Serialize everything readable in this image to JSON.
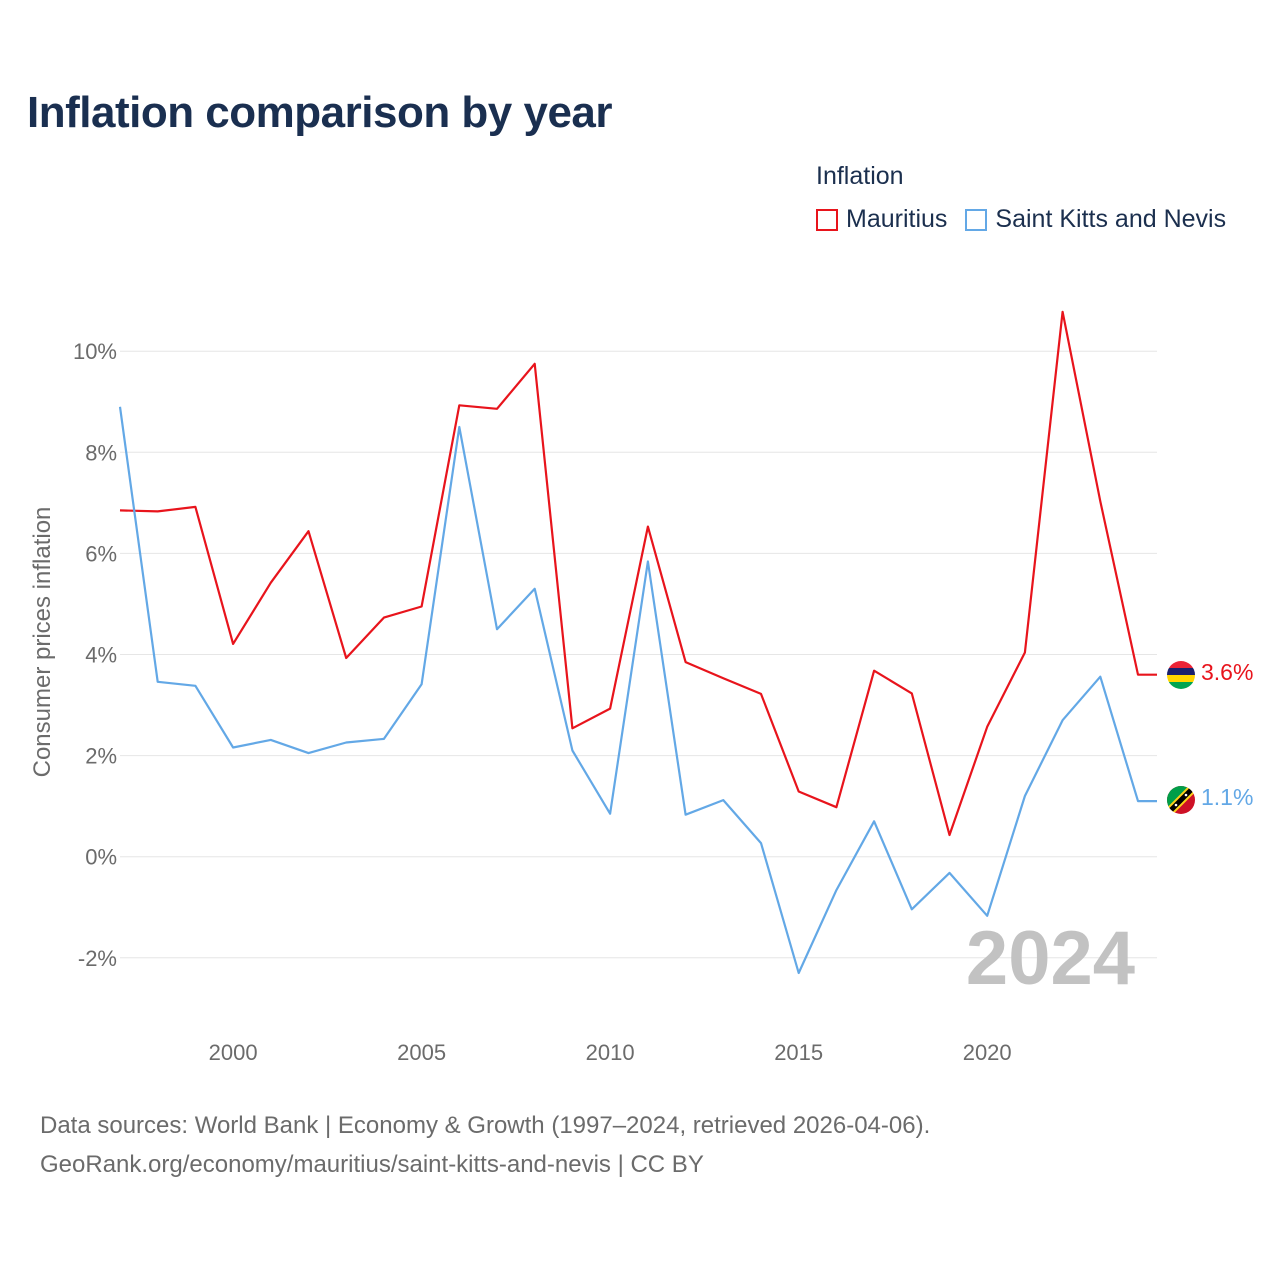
{
  "title": "Inflation comparison by year",
  "legend": {
    "title": "Inflation",
    "items": [
      {
        "name": "Mauritius",
        "color": "#e8141c"
      },
      {
        "name": "Saint Kitts and Nevis",
        "color": "#63a8e6"
      }
    ]
  },
  "source": {
    "line1": "Data sources: World Bank | Economy & Growth (1997–2024, retrieved 2026-04-06).",
    "line2": "GeoRank.org/economy/mauritius/saint-kitts-and-nevis | CC BY"
  },
  "chart_data": {
    "type": "line",
    "title": "Inflation comparison by year",
    "xlabel": "",
    "ylabel": "Consumer prices inflation",
    "xlim": [
      1997,
      2024
    ],
    "ylim": [
      -3,
      11
    ],
    "yticks": [
      -2,
      0,
      2,
      4,
      6,
      8,
      10
    ],
    "ytick_labels": [
      "-2%",
      "0%",
      "2%",
      "4%",
      "6%",
      "8%",
      "10%"
    ],
    "xticks": [
      2000,
      2005,
      2010,
      2015,
      2020
    ],
    "xtick_labels": [
      "2000",
      "2005",
      "2010",
      "2015",
      "2020"
    ],
    "grid": true,
    "year_watermark": "2024",
    "x": [
      1997,
      1998,
      1999,
      2000,
      2001,
      2002,
      2003,
      2004,
      2005,
      2006,
      2007,
      2008,
      2009,
      2010,
      2011,
      2012,
      2013,
      2014,
      2015,
      2016,
      2017,
      2018,
      2019,
      2020,
      2021,
      2022,
      2023,
      2024
    ],
    "series": [
      {
        "name": "Mauritius",
        "color": "#e8141c",
        "end_label": "3.6%",
        "flag": "mauritius-flag",
        "values": [
          6.85,
          6.83,
          6.92,
          4.21,
          5.42,
          6.44,
          3.93,
          4.73,
          4.95,
          8.93,
          8.86,
          9.75,
          2.54,
          2.93,
          6.53,
          3.85,
          3.53,
          3.22,
          1.29,
          0.98,
          3.68,
          3.23,
          0.43,
          2.57,
          4.04,
          10.78,
          7.03,
          3.6
        ]
      },
      {
        "name": "Saint Kitts and Nevis",
        "color": "#63a8e6",
        "end_label": "1.1%",
        "flag": "saint-kitts-and-nevis-flag",
        "values": [
          8.9,
          3.46,
          3.38,
          2.16,
          2.31,
          2.05,
          2.26,
          2.33,
          3.41,
          8.5,
          4.5,
          5.3,
          2.1,
          0.85,
          5.84,
          0.83,
          1.12,
          0.27,
          -2.3,
          -0.66,
          0.7,
          -1.04,
          -0.32,
          -1.17,
          1.2,
          2.7,
          3.56,
          1.1
        ]
      }
    ]
  }
}
